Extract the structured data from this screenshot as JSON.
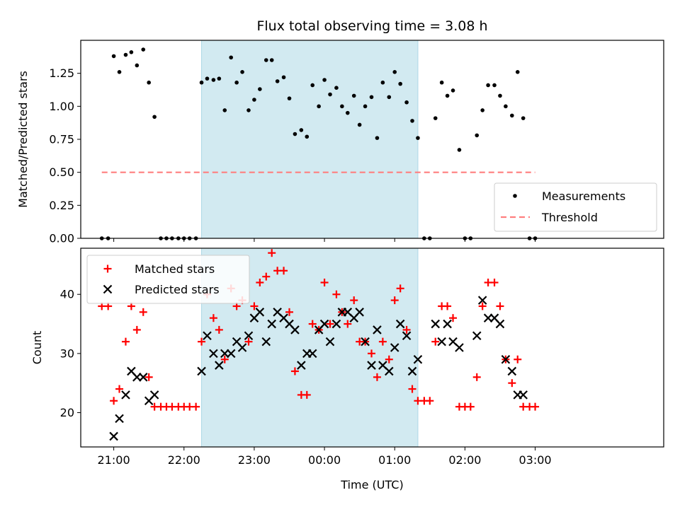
{
  "chart_data": [
    {
      "type": "scatter",
      "title": "Flux total observing time = 3.08 h",
      "ylabel": "Matched/Predicted stars",
      "xlabel": "",
      "xlim": [
        -0.47,
        7.83
      ],
      "ylim": [
        0.0,
        1.5
      ],
      "yticks": [
        0.0,
        0.25,
        0.5,
        0.75,
        1.0,
        1.25
      ],
      "ytick_labels": [
        "0.00",
        "0.25",
        "0.50",
        "0.75",
        "1.00",
        "1.25"
      ],
      "grid": false,
      "legend": "lower-right",
      "shaded_interval": [
        1.25,
        4.33
      ],
      "shade_color": "#add8e6",
      "series": [
        {
          "name": "Measurements",
          "marker": "dot",
          "color": "#000000",
          "points": [
            [
              -0.17,
              0.0
            ],
            [
              -0.08,
              0.0
            ],
            [
              0.0,
              1.38
            ],
            [
              0.08,
              1.26
            ],
            [
              0.17,
              1.39
            ],
            [
              0.25,
              1.41
            ],
            [
              0.33,
              1.31
            ],
            [
              0.42,
              1.43
            ],
            [
              0.5,
              1.18
            ],
            [
              0.58,
              0.92
            ],
            [
              0.67,
              0.0
            ],
            [
              0.75,
              0.0
            ],
            [
              0.83,
              0.0
            ],
            [
              0.92,
              0.0
            ],
            [
              1.0,
              0.0
            ],
            [
              1.08,
              0.0
            ],
            [
              1.17,
              0.0
            ],
            [
              1.25,
              1.18
            ],
            [
              1.33,
              1.21
            ],
            [
              1.42,
              1.2
            ],
            [
              1.5,
              1.21
            ],
            [
              1.58,
              0.97
            ],
            [
              1.67,
              1.37
            ],
            [
              1.75,
              1.18
            ],
            [
              1.83,
              1.26
            ],
            [
              1.92,
              0.97
            ],
            [
              2.0,
              1.05
            ],
            [
              2.08,
              1.13
            ],
            [
              2.17,
              1.35
            ],
            [
              2.25,
              1.35
            ],
            [
              2.33,
              1.19
            ],
            [
              2.42,
              1.22
            ],
            [
              2.5,
              1.06
            ],
            [
              2.58,
              0.79
            ],
            [
              2.67,
              0.82
            ],
            [
              2.75,
              0.77
            ],
            [
              2.83,
              1.16
            ],
            [
              2.92,
              1.0
            ],
            [
              3.0,
              1.2
            ],
            [
              3.08,
              1.09
            ],
            [
              3.17,
              1.14
            ],
            [
              3.25,
              1.0
            ],
            [
              3.33,
              0.95
            ],
            [
              3.42,
              1.08
            ],
            [
              3.5,
              0.86
            ],
            [
              3.58,
              1.0
            ],
            [
              3.67,
              1.07
            ],
            [
              3.75,
              0.76
            ],
            [
              3.83,
              1.18
            ],
            [
              3.92,
              1.07
            ],
            [
              4.0,
              1.26
            ],
            [
              4.08,
              1.17
            ],
            [
              4.17,
              1.03
            ],
            [
              4.25,
              0.89
            ],
            [
              4.33,
              0.76
            ],
            [
              4.42,
              0.0
            ],
            [
              4.5,
              0.0
            ],
            [
              4.58,
              0.91
            ],
            [
              4.67,
              1.18
            ],
            [
              4.75,
              1.08
            ],
            [
              4.83,
              1.12
            ],
            [
              4.92,
              0.67
            ],
            [
              5.0,
              0.0
            ],
            [
              5.08,
              0.0
            ],
            [
              5.17,
              0.78
            ],
            [
              5.25,
              0.97
            ],
            [
              5.33,
              1.16
            ],
            [
              5.42,
              1.16
            ],
            [
              5.5,
              1.08
            ],
            [
              5.58,
              1.0
            ],
            [
              5.67,
              0.93
            ],
            [
              5.75,
              1.26
            ],
            [
              5.83,
              0.91
            ],
            [
              5.92,
              0.0
            ],
            [
              6.0,
              0.0
            ]
          ]
        },
        {
          "name": "Threshold",
          "marker": "dashed-line",
          "color": "#ff7f7f",
          "points": [
            [
              -0.17,
              0.5
            ],
            [
              6.0,
              0.5
            ]
          ]
        }
      ]
    },
    {
      "type": "scatter",
      "title": "",
      "ylabel": "Count",
      "xlabel": "Time (UTC)",
      "xlim": [
        -0.47,
        7.83
      ],
      "ylim": [
        14.2,
        47.8
      ],
      "yticks": [
        20,
        30,
        40
      ],
      "ytick_labels": [
        "20",
        "30",
        "40"
      ],
      "xticks": [
        0,
        1,
        2,
        3,
        4,
        5,
        6
      ],
      "xtick_labels": [
        "21:00",
        "22:00",
        "23:00",
        "00:00",
        "01:00",
        "02:00",
        "03:00"
      ],
      "grid": false,
      "legend": "upper-left",
      "shaded_interval": [
        1.25,
        4.33
      ],
      "shade_color": "#add8e6",
      "series": [
        {
          "name": "Matched stars",
          "marker": "plus",
          "color": "#ff0000",
          "points": [
            [
              -0.17,
              38
            ],
            [
              -0.08,
              38
            ],
            [
              0.0,
              22
            ],
            [
              0.08,
              24
            ],
            [
              0.17,
              32
            ],
            [
              0.25,
              38
            ],
            [
              0.33,
              34
            ],
            [
              0.42,
              37
            ],
            [
              0.5,
              26
            ],
            [
              0.58,
              21
            ],
            [
              0.67,
              21
            ],
            [
              0.75,
              21
            ],
            [
              0.83,
              21
            ],
            [
              0.92,
              21
            ],
            [
              1.0,
              21
            ],
            [
              1.08,
              21
            ],
            [
              1.17,
              21
            ],
            [
              1.25,
              32
            ],
            [
              1.33,
              40
            ],
            [
              1.42,
              36
            ],
            [
              1.5,
              34
            ],
            [
              1.58,
              29
            ],
            [
              1.67,
              41
            ],
            [
              1.75,
              38
            ],
            [
              1.83,
              39
            ],
            [
              1.92,
              32
            ],
            [
              2.0,
              38
            ],
            [
              2.08,
              42
            ],
            [
              2.17,
              43
            ],
            [
              2.25,
              47
            ],
            [
              2.33,
              44
            ],
            [
              2.42,
              44
            ],
            [
              2.5,
              37
            ],
            [
              2.58,
              27
            ],
            [
              2.67,
              23
            ],
            [
              2.75,
              23
            ],
            [
              2.83,
              35
            ],
            [
              2.92,
              34
            ],
            [
              3.0,
              42
            ],
            [
              3.08,
              35
            ],
            [
              3.17,
              40
            ],
            [
              3.25,
              37
            ],
            [
              3.33,
              35
            ],
            [
              3.42,
              39
            ],
            [
              3.5,
              32
            ],
            [
              3.58,
              32
            ],
            [
              3.67,
              30
            ],
            [
              3.75,
              26
            ],
            [
              3.83,
              32
            ],
            [
              3.92,
              29
            ],
            [
              4.0,
              39
            ],
            [
              4.08,
              41
            ],
            [
              4.17,
              34
            ],
            [
              4.25,
              24
            ],
            [
              4.33,
              22
            ],
            [
              4.42,
              22
            ],
            [
              4.5,
              22
            ],
            [
              4.58,
              32
            ],
            [
              4.67,
              38
            ],
            [
              4.75,
              38
            ],
            [
              4.83,
              36
            ],
            [
              4.92,
              21
            ],
            [
              5.0,
              21
            ],
            [
              5.08,
              21
            ],
            [
              5.17,
              26
            ],
            [
              5.25,
              38
            ],
            [
              5.33,
              42
            ],
            [
              5.42,
              42
            ],
            [
              5.5,
              38
            ],
            [
              5.58,
              29
            ],
            [
              5.67,
              25
            ],
            [
              5.75,
              29
            ],
            [
              5.83,
              21
            ],
            [
              5.92,
              21
            ],
            [
              6.0,
              21
            ]
          ]
        },
        {
          "name": "Predicted stars",
          "marker": "x",
          "color": "#000000",
          "points": [
            [
              0.0,
              16
            ],
            [
              0.08,
              19
            ],
            [
              0.17,
              23
            ],
            [
              0.25,
              27
            ],
            [
              0.33,
              26
            ],
            [
              0.42,
              26
            ],
            [
              0.5,
              22
            ],
            [
              0.58,
              23
            ],
            [
              1.25,
              27
            ],
            [
              1.33,
              33
            ],
            [
              1.42,
              30
            ],
            [
              1.5,
              28
            ],
            [
              1.58,
              30
            ],
            [
              1.67,
              30
            ],
            [
              1.75,
              32
            ],
            [
              1.83,
              31
            ],
            [
              1.92,
              33
            ],
            [
              2.0,
              36
            ],
            [
              2.08,
              37
            ],
            [
              2.17,
              32
            ],
            [
              2.25,
              35
            ],
            [
              2.33,
              37
            ],
            [
              2.42,
              36
            ],
            [
              2.5,
              35
            ],
            [
              2.58,
              34
            ],
            [
              2.67,
              28
            ],
            [
              2.75,
              30
            ],
            [
              2.83,
              30
            ],
            [
              2.92,
              34
            ],
            [
              3.0,
              35
            ],
            [
              3.08,
              32
            ],
            [
              3.17,
              35
            ],
            [
              3.25,
              37
            ],
            [
              3.33,
              37
            ],
            [
              3.42,
              36
            ],
            [
              3.5,
              37
            ],
            [
              3.58,
              32
            ],
            [
              3.67,
              28
            ],
            [
              3.75,
              34
            ],
            [
              3.83,
              28
            ],
            [
              3.92,
              27
            ],
            [
              4.0,
              31
            ],
            [
              4.08,
              35
            ],
            [
              4.17,
              33
            ],
            [
              4.25,
              27
            ],
            [
              4.33,
              29
            ],
            [
              4.58,
              35
            ],
            [
              4.67,
              32
            ],
            [
              4.75,
              35
            ],
            [
              4.83,
              32
            ],
            [
              4.92,
              31
            ],
            [
              5.17,
              33
            ],
            [
              5.25,
              39
            ],
            [
              5.33,
              36
            ],
            [
              5.42,
              36
            ],
            [
              5.5,
              35
            ],
            [
              5.58,
              29
            ],
            [
              5.67,
              27
            ],
            [
              5.75,
              23
            ],
            [
              5.83,
              23
            ]
          ]
        }
      ]
    }
  ]
}
